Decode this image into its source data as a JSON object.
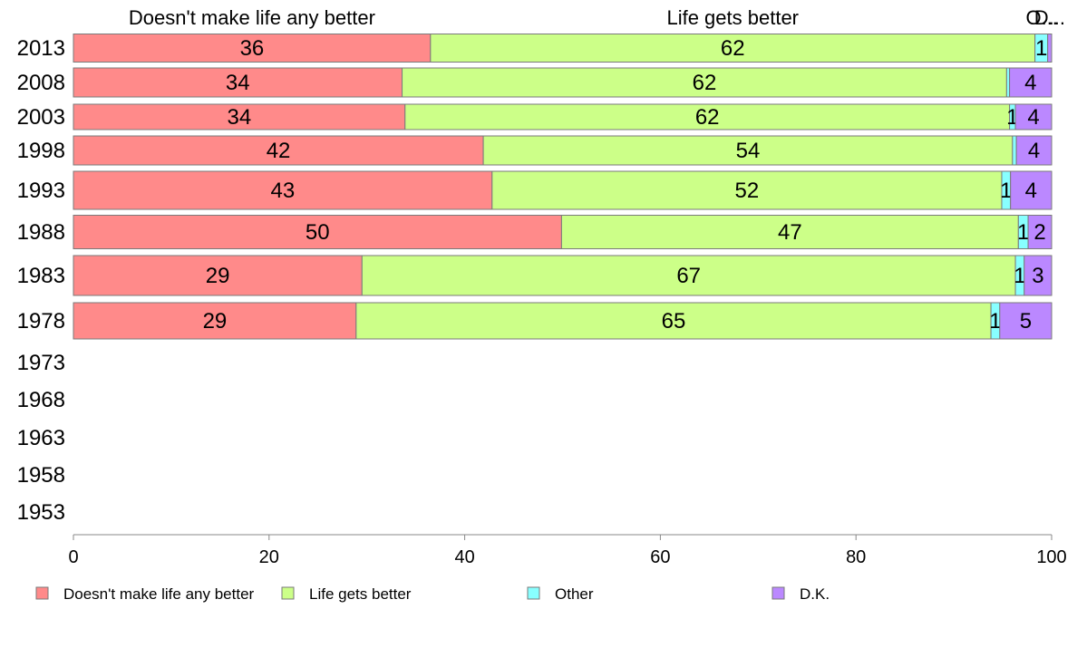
{
  "chart_data": {
    "type": "bar",
    "orientation": "horizontal",
    "stacked": true,
    "categories": [
      "2013",
      "2008",
      "2003",
      "1998",
      "1993",
      "1988",
      "1983",
      "1978",
      "1973",
      "1968",
      "1963",
      "1958",
      "1953"
    ],
    "series": [
      {
        "name": "Doesn't make life any better",
        "color": "#ff8a8a",
        "values": [
          36.5,
          33.6,
          33.9,
          41.9,
          42.8,
          49.9,
          29.5,
          28.9,
          null,
          null,
          null,
          null,
          null
        ],
        "labels": [
          "36",
          "34",
          "34",
          "42",
          "43",
          "50",
          "29",
          "29",
          "",
          "",
          "",
          "",
          ""
        ]
      },
      {
        "name": "Life gets better",
        "color": "#ccff88",
        "values": [
          61.8,
          61.8,
          61.8,
          54.1,
          52.1,
          46.7,
          66.8,
          64.9,
          null,
          null,
          null,
          null,
          null
        ],
        "labels": [
          "62",
          "62",
          "62",
          "54",
          "52",
          "47",
          "67",
          "65",
          "",
          "",
          "",
          "",
          ""
        ]
      },
      {
        "name": "Other",
        "color": "#88ffff",
        "values": [
          1.3,
          0.3,
          0.6,
          0.4,
          0.9,
          1.0,
          0.9,
          0.9,
          null,
          null,
          null,
          null,
          null
        ],
        "labels": [
          "1",
          "",
          "1",
          "",
          "1",
          "1",
          "1",
          "1",
          "",
          "",
          "",
          "",
          ""
        ]
      },
      {
        "name": "D.K.",
        "color": "#bb88ff",
        "values": [
          0.4,
          4.3,
          3.7,
          3.6,
          4.2,
          2.4,
          2.8,
          5.3,
          null,
          null,
          null,
          null,
          null
        ],
        "labels": [
          "",
          "4",
          "4",
          "4",
          "4",
          "2",
          "3",
          "5",
          "",
          "",
          "",
          "",
          ""
        ]
      }
    ],
    "bar_weights": [
      0.9,
      0.9,
      0.75,
      0.9,
      1.15,
      1.0,
      1.25,
      1.1,
      0,
      0,
      0,
      0,
      0
    ],
    "top_labels": [
      {
        "text": "Doesn't make life any better",
        "at": 18.25
      },
      {
        "text": "Life gets better",
        "at": 67.4
      },
      {
        "text": "O...",
        "at": 99.0
      },
      {
        "text": "D...",
        "at": 99.8
      }
    ],
    "xlim": [
      0,
      100
    ],
    "xticks": [
      0,
      20,
      40,
      60,
      80,
      100
    ],
    "xlabel": "",
    "ylabel": "",
    "title": "",
    "grid": false,
    "legend": "bottom-left"
  }
}
